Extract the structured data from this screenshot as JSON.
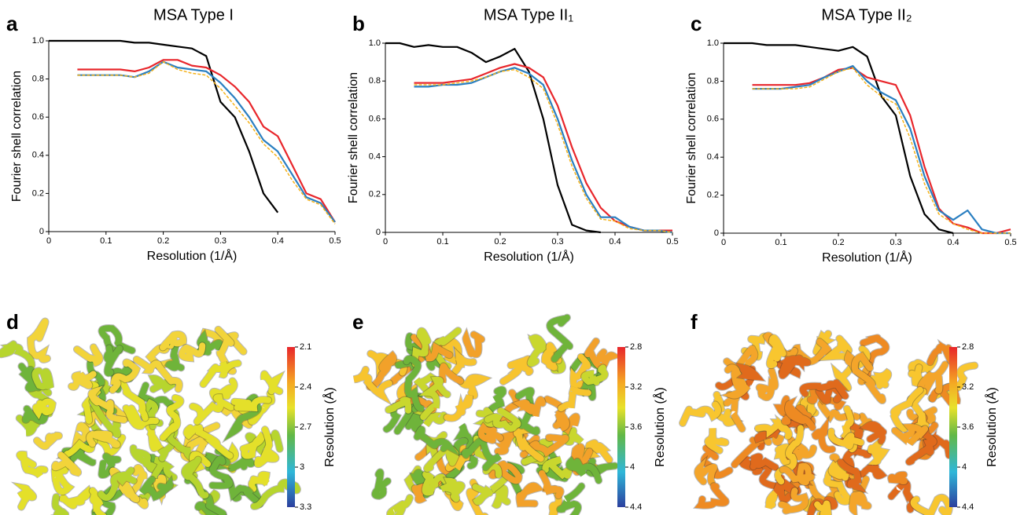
{
  "chart_data": [
    {
      "type": "line",
      "letter": "a",
      "title": "MSA Type I",
      "xlabel": "Resolution (1/Å)",
      "ylabel": "Fourier shell correlation",
      "x": [
        0,
        0.025,
        0.05,
        0.075,
        0.1,
        0.125,
        0.15,
        0.175,
        0.2,
        0.225,
        0.25,
        0.275,
        0.3,
        0.325,
        0.35,
        0.375,
        0.4,
        0.425,
        0.45,
        0.475,
        0.5
      ],
      "xlim": [
        0,
        0.5
      ],
      "ylim": [
        0,
        1
      ],
      "xticks": [
        0,
        0.1,
        0.2,
        0.3,
        0.4,
        0.5
      ],
      "yticks": [
        0,
        0.2,
        0.4,
        0.6,
        0.8,
        {
          "value": 1,
          "label": "1.0"
        }
      ],
      "series": [
        {
          "color": "#000000",
          "values": [
            1,
            1,
            1,
            1,
            1,
            1,
            0.99,
            0.99,
            0.98,
            0.97,
            0.96,
            0.92,
            0.68,
            0.6,
            0.42,
            0.2,
            0.1,
            null,
            null,
            null,
            null
          ]
        },
        {
          "color": "#e8262b",
          "values": [
            null,
            null,
            0.85,
            0.85,
            0.85,
            0.85,
            0.84,
            0.86,
            0.9,
            0.9,
            0.87,
            0.86,
            0.82,
            0.76,
            0.68,
            0.55,
            0.5,
            0.35,
            0.2,
            0.17,
            0.05
          ]
        },
        {
          "color": "#2a7fc1",
          "values": [
            null,
            null,
            0.82,
            0.82,
            0.82,
            0.82,
            0.81,
            0.84,
            0.89,
            0.86,
            0.85,
            0.84,
            0.78,
            0.7,
            0.6,
            0.48,
            0.42,
            0.3,
            0.18,
            0.15,
            0.05
          ]
        },
        {
          "color": "#f5b31b",
          "dashed": true,
          "values": [
            null,
            null,
            0.82,
            0.82,
            0.82,
            0.82,
            0.81,
            0.83,
            0.89,
            0.85,
            0.83,
            0.82,
            0.75,
            0.66,
            0.57,
            0.46,
            0.39,
            0.27,
            0.17,
            0.14,
            0.04
          ]
        }
      ]
    },
    {
      "type": "line",
      "letter": "b",
      "title": "MSA Type II₁",
      "xlabel": "Resolution (1/Å)",
      "ylabel": "Fourier shell correlation",
      "x": [
        0,
        0.025,
        0.05,
        0.075,
        0.1,
        0.125,
        0.15,
        0.175,
        0.2,
        0.225,
        0.25,
        0.275,
        0.3,
        0.325,
        0.35,
        0.375,
        0.4,
        0.425,
        0.45,
        0.475,
        0.5
      ],
      "xlim": [
        0,
        0.5
      ],
      "ylim": [
        0,
        1
      ],
      "xticks": [
        0,
        0.1,
        0.2,
        0.3,
        0.4,
        0.5
      ],
      "yticks": [
        0,
        0.2,
        0.4,
        0.6,
        0.8,
        {
          "value": 1,
          "label": "1.0"
        }
      ],
      "series": [
        {
          "color": "#000000",
          "values": [
            1,
            1,
            0.98,
            0.99,
            0.98,
            0.98,
            0.95,
            0.9,
            0.93,
            0.97,
            0.85,
            0.6,
            0.25,
            0.04,
            0.01,
            0,
            null,
            null,
            null,
            null,
            null
          ]
        },
        {
          "color": "#e8262b",
          "values": [
            null,
            null,
            0.79,
            0.79,
            0.79,
            0.8,
            0.81,
            0.84,
            0.87,
            0.89,
            0.87,
            0.82,
            0.67,
            0.45,
            0.26,
            0.13,
            0.06,
            0.03,
            0.01,
            0.01,
            0.01
          ]
        },
        {
          "color": "#2a7fc1",
          "values": [
            null,
            null,
            0.77,
            0.77,
            0.78,
            0.78,
            0.79,
            0.82,
            0.85,
            0.87,
            0.84,
            0.78,
            0.6,
            0.38,
            0.2,
            0.08,
            0.08,
            0.03,
            0.01,
            0.01,
            0
          ]
        },
        {
          "color": "#f5b31b",
          "dashed": true,
          "values": [
            null,
            null,
            0.78,
            0.78,
            0.78,
            0.79,
            0.8,
            0.82,
            0.85,
            0.86,
            0.82,
            0.76,
            0.57,
            0.35,
            0.18,
            0.07,
            0.06,
            0.02,
            0.01,
            0.01,
            0
          ]
        }
      ]
    },
    {
      "type": "line",
      "letter": "c",
      "title": "MSA Type II₂",
      "xlabel": "Resolution (1/Å)",
      "ylabel": "Fourier shell correlation",
      "x": [
        0,
        0.025,
        0.05,
        0.075,
        0.1,
        0.125,
        0.15,
        0.175,
        0.2,
        0.225,
        0.25,
        0.275,
        0.3,
        0.325,
        0.35,
        0.375,
        0.4,
        0.425,
        0.45,
        0.475,
        0.5
      ],
      "xlim": [
        0,
        0.5
      ],
      "ylim": [
        0,
        1
      ],
      "xticks": [
        0,
        0.1,
        0.2,
        0.3,
        0.4,
        0.5
      ],
      "yticks": [
        0,
        0.2,
        0.4,
        0.6,
        0.8,
        {
          "value": 1,
          "label": "1.0"
        }
      ],
      "series": [
        {
          "color": "#000000",
          "values": [
            1,
            1,
            1,
            0.99,
            0.99,
            0.99,
            0.98,
            0.97,
            0.96,
            0.98,
            0.93,
            0.72,
            0.62,
            0.3,
            0.1,
            0.02,
            0,
            null,
            null,
            null,
            null
          ]
        },
        {
          "color": "#e8262b",
          "values": [
            null,
            null,
            0.78,
            0.78,
            0.78,
            0.78,
            0.79,
            0.82,
            0.86,
            0.87,
            0.82,
            0.8,
            0.78,
            0.62,
            0.35,
            0.13,
            0.05,
            0.03,
            0,
            0,
            0.02
          ]
        },
        {
          "color": "#2a7fc1",
          "values": [
            null,
            null,
            0.76,
            0.76,
            0.76,
            0.77,
            0.78,
            0.82,
            0.85,
            0.88,
            0.8,
            0.74,
            0.7,
            0.55,
            0.3,
            0.12,
            0.07,
            0.12,
            0.02,
            0,
            0
          ]
        },
        {
          "color": "#f5b31b",
          "dashed": true,
          "values": [
            null,
            null,
            0.76,
            0.76,
            0.76,
            0.76,
            0.77,
            0.81,
            0.85,
            0.87,
            0.78,
            0.72,
            0.68,
            0.5,
            0.26,
            0.1,
            0.05,
            0.02,
            0,
            0,
            0
          ]
        }
      ]
    },
    {
      "type": "density_map",
      "letter": "d",
      "colorbar_label": "Resolution (Å)",
      "clim": [
        2.1,
        3.3
      ],
      "cticks": [
        2.1,
        2.4,
        2.7,
        3,
        3.3
      ],
      "colors": [
        "#6fb43a",
        "#b7d52e",
        "#e4e02a",
        "#f2d43a"
      ]
    },
    {
      "type": "density_map",
      "letter": "e",
      "colorbar_label": "Resolution (Å)",
      "clim": [
        2.8,
        4.4
      ],
      "cticks": [
        2.8,
        3.2,
        3.6,
        4,
        4.4
      ],
      "colors": [
        "#f2a12a",
        "#f7c42e",
        "#c9d72e",
        "#6fb43a"
      ]
    },
    {
      "type": "density_map",
      "letter": "f",
      "colorbar_label": "Resolution (Å)",
      "clim": [
        2.8,
        4.4
      ],
      "cticks": [
        2.8,
        3.2,
        3.6,
        4,
        4.4
      ],
      "colors": [
        "#ee8a22",
        "#f4a52a",
        "#f8c62f",
        "#e06a1c"
      ]
    }
  ]
}
